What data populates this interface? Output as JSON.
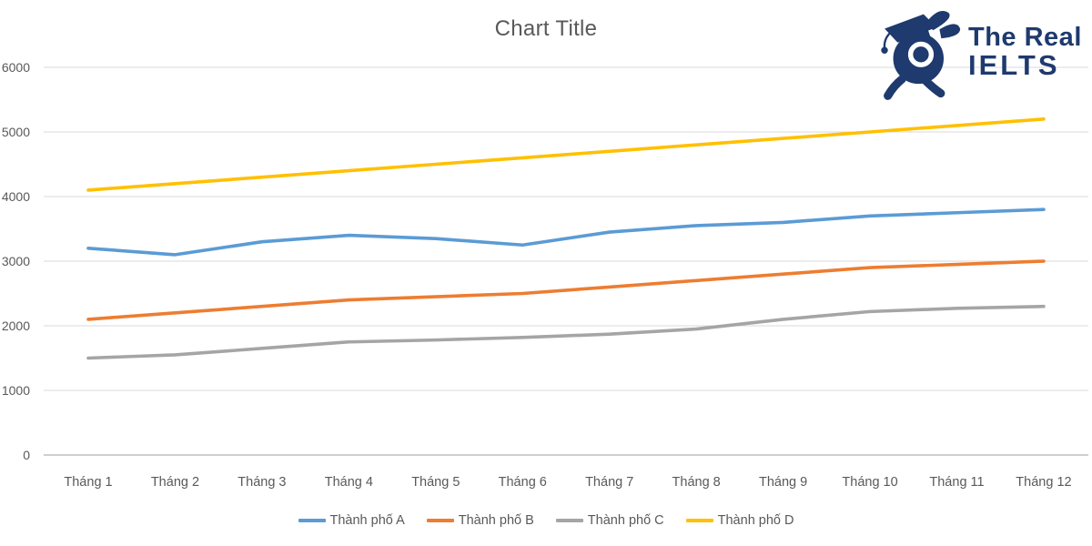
{
  "page": {
    "background": "#ffffff"
  },
  "logo": {
    "line1": "The Real",
    "line2": "IELTS",
    "color": "#1e3a6e",
    "mascot_icon": "snail-graduate-mascot"
  },
  "chart_data": {
    "type": "line",
    "title": "Chart Title",
    "categories": [
      "Tháng 1",
      "Tháng 2",
      "Tháng 3",
      "Tháng 4",
      "Tháng 5",
      "Tháng 6",
      "Tháng 7",
      "Tháng 8",
      "Tháng 9",
      "Tháng 10",
      "Tháng 11",
      "Tháng 12"
    ],
    "series": [
      {
        "name": "Thành phố A",
        "color": "#5B9BD5",
        "values": [
          3200,
          3100,
          3300,
          3400,
          3350,
          3250,
          3450,
          3550,
          3600,
          3700,
          3750,
          3800
        ]
      },
      {
        "name": "Thành phố B",
        "color": "#ED7D31",
        "values": [
          2100,
          2200,
          2300,
          2400,
          2450,
          2500,
          2600,
          2700,
          2800,
          2900,
          2950,
          3000
        ]
      },
      {
        "name": "Thành phố C",
        "color": "#A5A5A5",
        "values": [
          1500,
          1550,
          1650,
          1750,
          1780,
          1820,
          1870,
          1950,
          2100,
          2220,
          2270,
          2300
        ]
      },
      {
        "name": "Thành phố D",
        "color": "#FFC000",
        "values": [
          4100,
          4200,
          4300,
          4400,
          4500,
          4600,
          4700,
          4800,
          4900,
          5000,
          5100,
          5200
        ]
      }
    ],
    "y_axis": {
      "min": 0,
      "max": 6000,
      "step": 1000,
      "tick_labels": [
        "0",
        "1000",
        "2000",
        "3000",
        "4000",
        "5000",
        "6000"
      ]
    },
    "ylim": [
      0,
      6000
    ],
    "grid": true,
    "legend_position": "bottom",
    "colors": {
      "gridline": "#D9D9D9",
      "axis_line": "#BFBFBF",
      "text": "#595959"
    }
  }
}
